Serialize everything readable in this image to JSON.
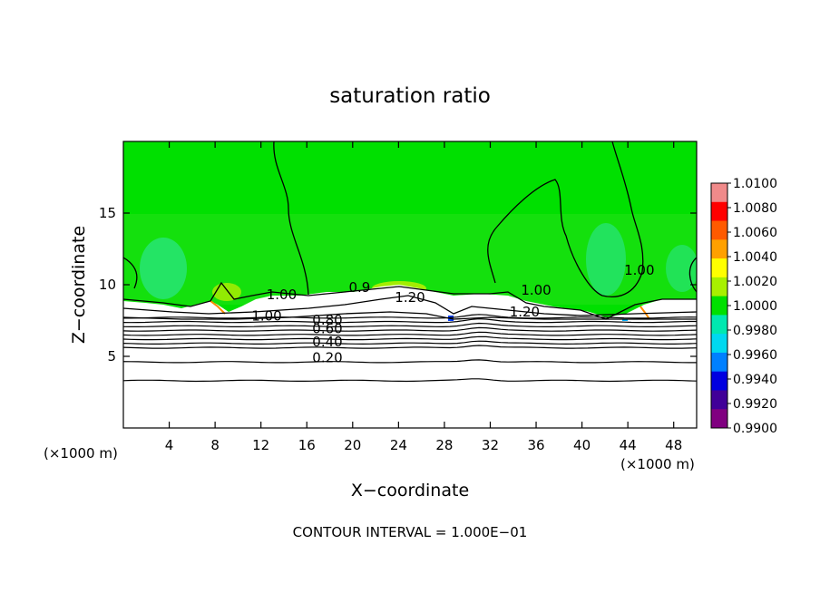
{
  "chart_data": {
    "type": "heatmap",
    "title": "saturation ratio",
    "xlabel": "X−coordinate",
    "ylabel": "Z−coordinate",
    "x_unit_label": "(×1000 m)",
    "x_unit_label_right": "(×1000 m)",
    "footer": "CONTOUR INTERVAL = 1.000E−01",
    "xlim": [
      0,
      50
    ],
    "ylim": [
      0,
      20
    ],
    "xticks": [
      4,
      8,
      12,
      16,
      20,
      24,
      28,
      32,
      36,
      40,
      44,
      48
    ],
    "yticks": [
      5,
      10,
      15
    ],
    "colorbar": {
      "min": 0.99,
      "max": 1.01,
      "tick_labels": [
        "1.0100",
        "1.0080",
        "1.0060",
        "1.0040",
        "1.0020",
        "1.0000",
        "0.9980",
        "0.9960",
        "0.9940",
        "0.9920",
        "0.9900"
      ],
      "colors": [
        "#f08a8a",
        "#ff0000",
        "#ff5a00",
        "#ffa000",
        "#ffff00",
        "#a8f000",
        "#00e000",
        "#00e8b0",
        "#00d8f0",
        "#0080ff",
        "#0000e0",
        "#400098",
        "#800080"
      ]
    },
    "background_value": 1.0,
    "contour_labels": [
      {
        "text": "1.00",
        "x": 13.8,
        "z": 9.0
      },
      {
        "text": "1.00",
        "x": 12.5,
        "z": 7.5
      },
      {
        "text": "0.80",
        "x": 17.8,
        "z": 7.2
      },
      {
        "text": "0.60",
        "x": 17.8,
        "z": 6.6
      },
      {
        "text": "0.40",
        "x": 17.8,
        "z": 5.7
      },
      {
        "text": "0.20",
        "x": 17.8,
        "z": 4.6
      },
      {
        "text": "1.20",
        "x": 25.0,
        "z": 8.8
      },
      {
        "text": "0.9",
        "x": 20.6,
        "z": 9.5
      },
      {
        "text": "1.00",
        "x": 36.0,
        "z": 9.3
      },
      {
        "text": "1.20",
        "x": 35.0,
        "z": 7.8
      },
      {
        "text": "1.00",
        "x": 45.0,
        "z": 10.7
      }
    ],
    "contour_level_heights": [
      3.3,
      4.6,
      5.6,
      5.9,
      6.2,
      6.5,
      6.8,
      7.1,
      7.4,
      7.7
    ]
  }
}
